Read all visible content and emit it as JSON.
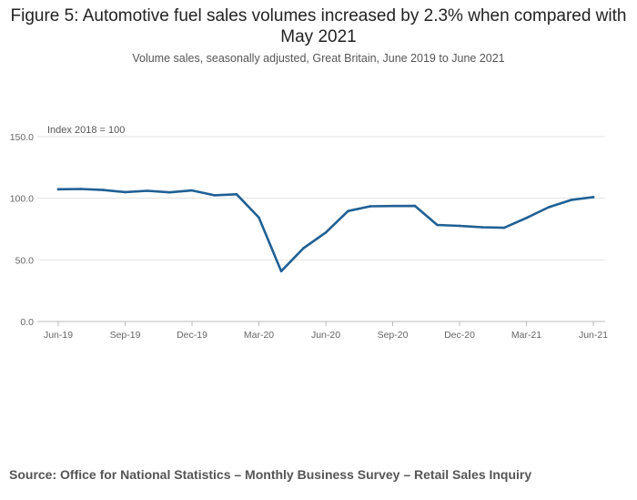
{
  "header": {
    "title": "Figure 5: Automotive fuel sales volumes increased by 2.3% when compared with May 2021",
    "subtitle": "Volume sales, seasonally adjusted, Great Britain, June 2019 to June 2021"
  },
  "chart_data": {
    "type": "line",
    "title": "Figure 5: Automotive fuel sales volumes increased by 2.3% when compared with May 2021",
    "subtitle": "Volume sales, seasonally adjusted, Great Britain, June 2019 to June 2021",
    "ylabel": "Index 2018 = 100",
    "xlabel": "",
    "ylim": [
      0,
      150
    ],
    "yticks": [
      0,
      50,
      100,
      150
    ],
    "ytick_labels": [
      "0.0",
      "50.0",
      "100.0",
      "150.0"
    ],
    "x": [
      "Jun-19",
      "Jul-19",
      "Aug-19",
      "Sep-19",
      "Oct-19",
      "Nov-19",
      "Dec-19",
      "Jan-20",
      "Feb-20",
      "Mar-20",
      "Apr-20",
      "May-20",
      "Jun-20",
      "Jul-20",
      "Aug-20",
      "Sep-20",
      "Oct-20",
      "Nov-20",
      "Dec-20",
      "Jan-21",
      "Feb-21",
      "Mar-21",
      "Apr-21",
      "May-21",
      "Jun-21"
    ],
    "xtick_labels": [
      "Jun-19",
      "Sep-19",
      "Dec-19",
      "Mar-20",
      "Jun-20",
      "Sep-20",
      "Dec-20",
      "Mar-21",
      "Jun-21"
    ],
    "xtick_indices": [
      0,
      3,
      6,
      9,
      12,
      15,
      18,
      21,
      24
    ],
    "grid": true,
    "series": [
      {
        "name": "Automotive fuel",
        "color": "#206095",
        "values": [
          107.3,
          107.5,
          106.7,
          105.0,
          106.0,
          104.8,
          106.3,
          102.4,
          103.2,
          84.3,
          40.8,
          59.5,
          72.2,
          89.6,
          93.5,
          93.7,
          93.8,
          78.3,
          77.6,
          76.5,
          76.0,
          84.0,
          92.7,
          98.6,
          100.9
        ]
      }
    ]
  },
  "footer": {
    "source": "Source: Office for National Statistics – Monthly Business Survey – Retail Sales Inquiry"
  }
}
